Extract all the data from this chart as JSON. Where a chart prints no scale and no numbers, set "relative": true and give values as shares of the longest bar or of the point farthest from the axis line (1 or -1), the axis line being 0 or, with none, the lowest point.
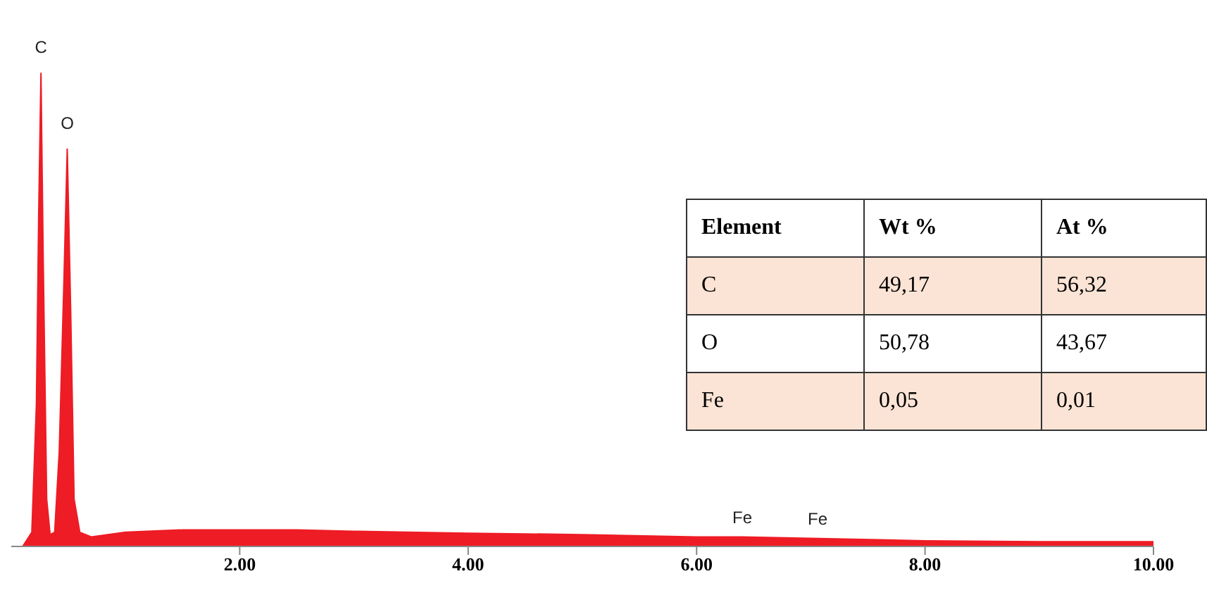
{
  "chart_data": [
    {
      "type": "area",
      "relative": true,
      "color": "#ee1c25",
      "x": [
        0.1,
        0.18,
        0.22,
        0.24,
        0.26,
        0.28,
        0.31,
        0.34,
        0.38,
        0.42,
        0.46,
        0.49,
        0.52,
        0.55,
        0.6,
        0.7,
        1.0,
        1.5,
        2.0,
        2.5,
        3.0,
        4.0,
        5.0,
        6.0,
        6.4,
        7.0,
        8.0,
        9.0,
        10.0
      ],
      "values": [
        0.0,
        0.03,
        0.3,
        0.7,
        1.0,
        0.6,
        0.1,
        0.025,
        0.03,
        0.2,
        0.55,
        0.84,
        0.5,
        0.1,
        0.03,
        0.02,
        0.03,
        0.035,
        0.035,
        0.035,
        0.032,
        0.028,
        0.025,
        0.02,
        0.02,
        0.017,
        0.012,
        0.01,
        0.01
      ],
      "xlim": [
        0,
        10
      ],
      "xticks": [
        {
          "value": 2,
          "label": "2.00"
        },
        {
          "value": 4,
          "label": "4.00"
        },
        {
          "value": 6,
          "label": "6.00"
        },
        {
          "value": 8,
          "label": "8.00"
        },
        {
          "value": 10,
          "label": "10.00"
        }
      ],
      "annotations": [
        {
          "text": "C",
          "x": 0.26,
          "y": 1.0
        },
        {
          "text": "O",
          "x": 0.49,
          "y": 0.84
        },
        {
          "text": "Fe",
          "x": 6.4,
          "y": 0.02
        },
        {
          "text": "Fe",
          "x": 7.06,
          "y": 0.017
        }
      ]
    },
    {
      "type": "other",
      "ylabel": "Element",
      "categories": [
        "Wt %",
        "At %"
      ],
      "y_categories": [
        "C",
        "O",
        "Fe"
      ],
      "cell_labels": [
        [
          "49,17",
          "56,32"
        ],
        [
          "50,78",
          "43,67"
        ],
        [
          "0,05",
          "0,01"
        ]
      ]
    }
  ]
}
